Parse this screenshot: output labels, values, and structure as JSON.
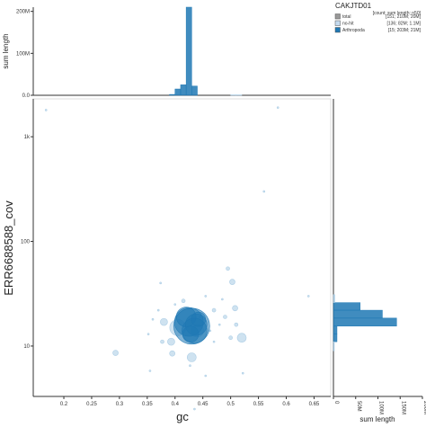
{
  "chart_data": {
    "type": "scatter",
    "title": "CAKJTD01",
    "xlabel": "gc",
    "ylabel": "ERR6688588_cov",
    "top_hist_label": "sum length",
    "right_hist_label": "sum length",
    "x_ticks": [
      "0.2",
      "0.25",
      "0.3",
      "0.35",
      "0.4",
      "0.45",
      "0.5",
      "0.55",
      "0.6",
      "0.65"
    ],
    "x_tick_values": [
      0.2,
      0.25,
      0.3,
      0.35,
      0.4,
      0.45,
      0.5,
      0.55,
      0.6,
      0.65
    ],
    "xlim": [
      0.145,
      0.68
    ],
    "y_scale": "log",
    "y_ticks": [
      "10",
      "100",
      "1k"
    ],
    "y_tick_values": [
      10,
      100,
      1000
    ],
    "ylim": [
      3.3,
      2300
    ],
    "top_hist_ticks": [
      "0.0",
      "100M",
      "200M"
    ],
    "top_hist_tick_values": [
      0,
      100,
      200
    ],
    "top_hist_max": 210,
    "right_hist_ticks": [
      "0",
      "50M",
      "100M",
      "150M",
      "200M"
    ],
    "right_hist_tick_values": [
      0,
      50,
      100,
      150,
      200
    ],
    "right_hist_max": 200,
    "legend": {
      "header": "[count; sum length; n50]",
      "items": [
        {
          "name": "total",
          "stats": "[151; 210M; 20M]",
          "color": "#999999"
        },
        {
          "name": "no-hit",
          "stats": "[136; 82M; 1.1M]",
          "color": "#c6dbef"
        },
        {
          "name": "Arthropoda",
          "stats": "[15; 203M; 21M]",
          "color": "#1f78b4"
        }
      ]
    },
    "series": [
      {
        "name": "no-hit",
        "color": "#a6cae3",
        "points": [
          {
            "x": 0.168,
            "y": 1800,
            "r": 1
          },
          {
            "x": 0.585,
            "y": 1900,
            "r": 1
          },
          {
            "x": 0.56,
            "y": 300,
            "r": 1
          },
          {
            "x": 0.64,
            "y": 30,
            "r": 1
          },
          {
            "x": 0.495,
            "y": 55,
            "r": 2
          },
          {
            "x": 0.503,
            "y": 41,
            "r": 3
          },
          {
            "x": 0.293,
            "y": 8.6,
            "r": 3
          },
          {
            "x": 0.355,
            "y": 5.8,
            "r": 1
          },
          {
            "x": 0.374,
            "y": 40,
            "r": 1
          },
          {
            "x": 0.352,
            "y": 13,
            "r": 1
          },
          {
            "x": 0.393,
            "y": 11,
            "r": 4
          },
          {
            "x": 0.395,
            "y": 8.5,
            "r": 3
          },
          {
            "x": 0.43,
            "y": 7.8,
            "r": 5
          },
          {
            "x": 0.427,
            "y": 6.5,
            "r": 1
          },
          {
            "x": 0.455,
            "y": 5.2,
            "r": 1
          },
          {
            "x": 0.52,
            "y": 12,
            "r": 5
          },
          {
            "x": 0.51,
            "y": 16,
            "r": 2
          },
          {
            "x": 0.508,
            "y": 23,
            "r": 3
          },
          {
            "x": 0.49,
            "y": 19,
            "r": 2
          },
          {
            "x": 0.5,
            "y": 12,
            "r": 2
          },
          {
            "x": 0.48,
            "y": 16,
            "r": 1
          },
          {
            "x": 0.47,
            "y": 22,
            "r": 2
          },
          {
            "x": 0.522,
            "y": 5.5,
            "r": 1
          },
          {
            "x": 0.435,
            "y": 2.5,
            "r": 1
          },
          {
            "x": 0.38,
            "y": 17,
            "r": 4
          },
          {
            "x": 0.377,
            "y": 11,
            "r": 2
          },
          {
            "x": 0.37,
            "y": 22,
            "r": 1
          },
          {
            "x": 0.36,
            "y": 18,
            "r": 1
          },
          {
            "x": 0.47,
            "y": 11,
            "r": 1
          },
          {
            "x": 0.463,
            "y": 14,
            "r": 1
          },
          {
            "x": 0.445,
            "y": 19,
            "r": 1
          },
          {
            "x": 0.415,
            "y": 27,
            "r": 2
          },
          {
            "x": 0.4,
            "y": 25,
            "r": 1
          },
          {
            "x": 0.485,
            "y": 28,
            "r": 1
          },
          {
            "x": 0.455,
            "y": 30,
            "r": 1
          },
          {
            "x": 0.405,
            "y": 15,
            "r": 9
          },
          {
            "x": 0.44,
            "y": 14,
            "r": 7
          }
        ]
      },
      {
        "name": "Arthropoda",
        "color": "#1f78b4",
        "points": [
          {
            "x": 0.43,
            "y": 15.5,
            "r": 20
          },
          {
            "x": 0.425,
            "y": 17,
            "r": 16
          },
          {
            "x": 0.435,
            "y": 14,
            "r": 14
          },
          {
            "x": 0.42,
            "y": 19,
            "r": 11
          },
          {
            "x": 0.438,
            "y": 16,
            "r": 12
          },
          {
            "x": 0.428,
            "y": 13,
            "r": 9
          },
          {
            "x": 0.442,
            "y": 18,
            "r": 8
          }
        ]
      }
    ],
    "top_hist": {
      "bin_width": 0.01,
      "bins": [
        {
          "x0": 0.39,
          "value": 2,
          "color": "#1f78b4"
        },
        {
          "x0": 0.4,
          "value": 15,
          "color": "#1f78b4"
        },
        {
          "x0": 0.41,
          "value": 25,
          "color": "#1f78b4"
        },
        {
          "x0": 0.42,
          "value": 210,
          "color": "#1f78b4"
        },
        {
          "x0": 0.43,
          "value": 22,
          "color": "#1f78b4"
        },
        {
          "x0": 0.5,
          "value": 1,
          "color": "#a6cae3"
        },
        {
          "x0": 0.51,
          "value": 1,
          "color": "#a6cae3"
        }
      ]
    },
    "right_hist": {
      "bins": [
        {
          "y0": 11,
          "y1": 13,
          "value": 8,
          "color": "#1f78b4"
        },
        {
          "y0": 13,
          "y1": 15.5,
          "value": 8,
          "color": "#1f78b4"
        },
        {
          "y0": 15.5,
          "y1": 18.5,
          "value": 142,
          "color": "#1f78b4"
        },
        {
          "y0": 18.5,
          "y1": 22,
          "value": 110,
          "color": "#1f78b4"
        },
        {
          "y0": 22,
          "y1": 26,
          "value": 60,
          "color": "#1f78b4"
        },
        {
          "y0": 26,
          "y1": 31,
          "value": 3,
          "color": "#a6cae3"
        },
        {
          "y0": 9,
          "y1": 11,
          "value": 2,
          "color": "#a6cae3"
        }
      ]
    }
  }
}
